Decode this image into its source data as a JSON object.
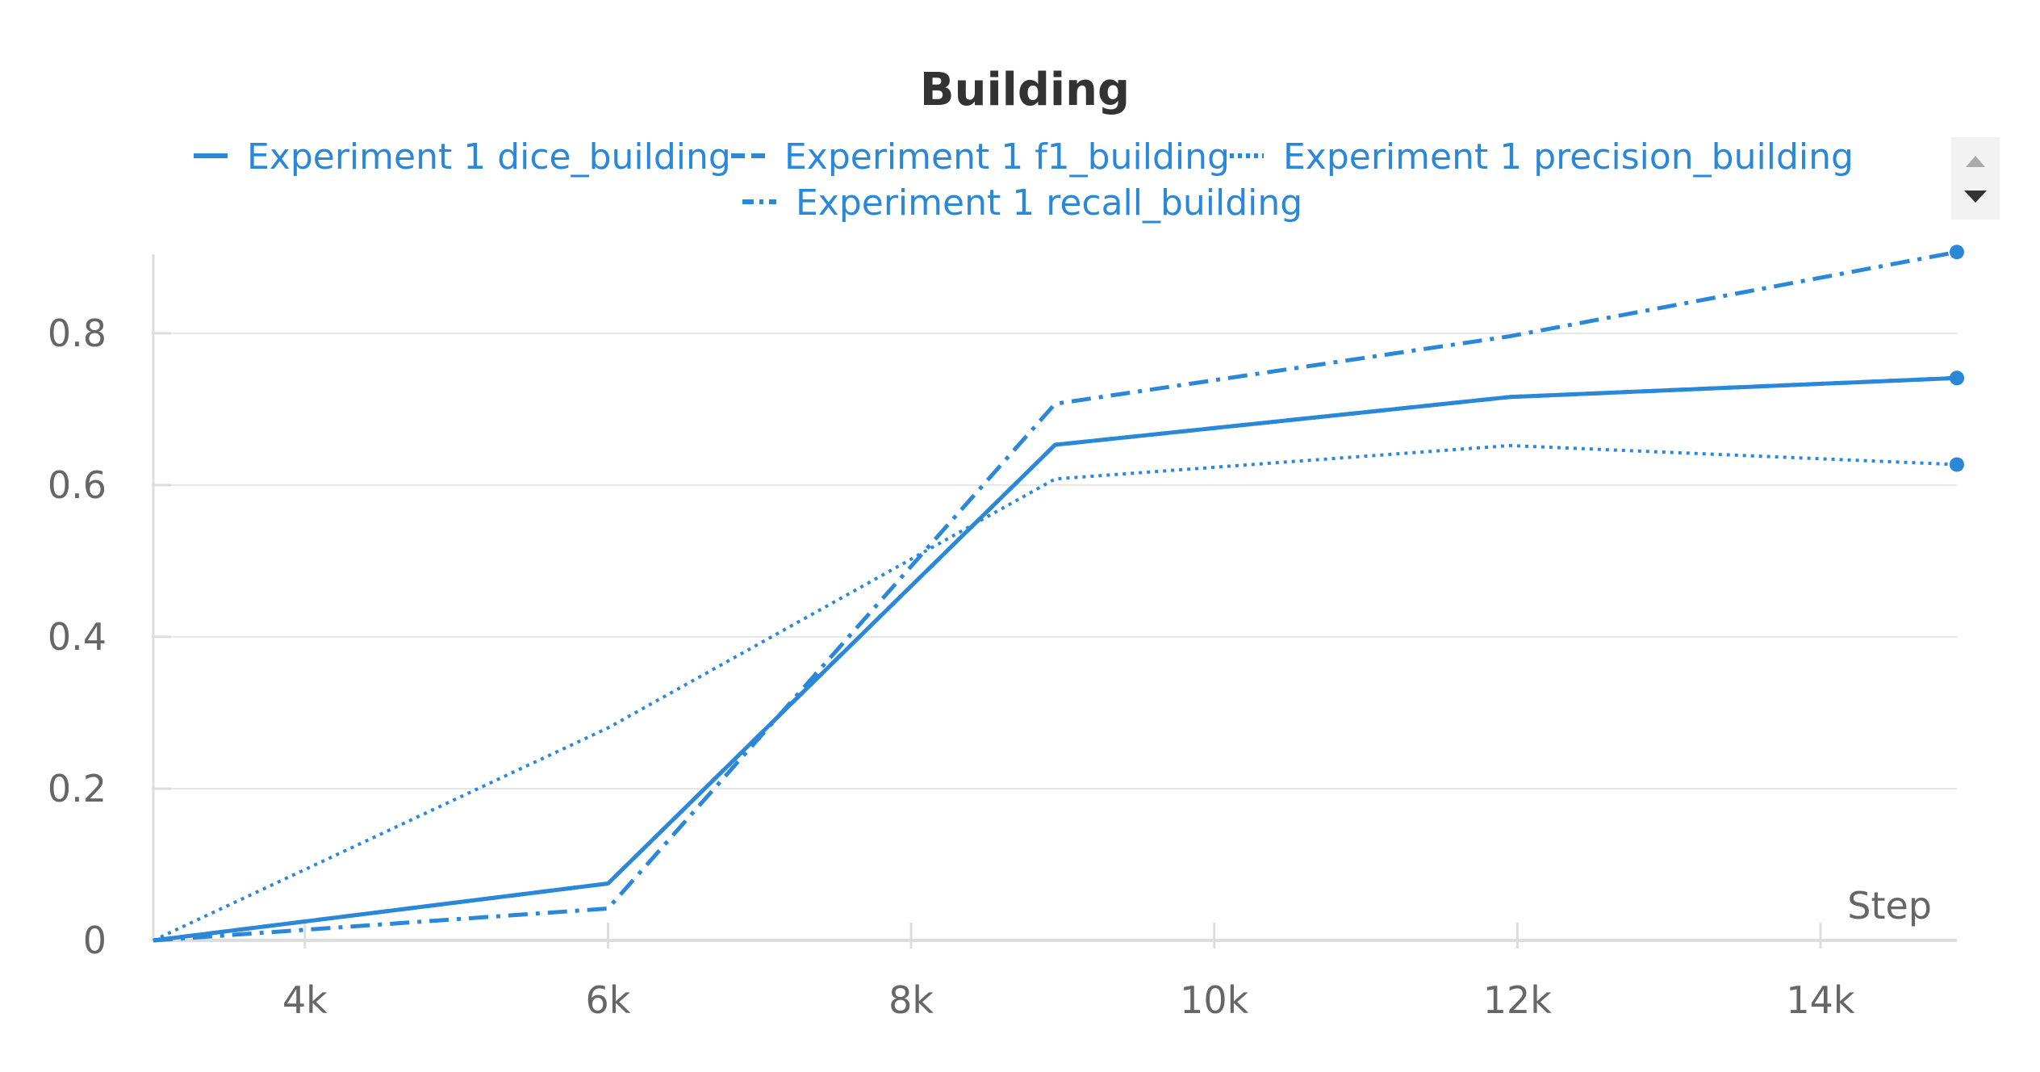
{
  "chart_data": {
    "type": "line",
    "title": "Building",
    "xlabel": "Step",
    "ylabel": "",
    "xlim": [
      3000,
      14900
    ],
    "ylim": [
      0,
      0.92
    ],
    "x_ticks": [
      {
        "value": 4000,
        "label": "4k"
      },
      {
        "value": 6000,
        "label": "6k"
      },
      {
        "value": 8000,
        "label": "8k"
      },
      {
        "value": 10000,
        "label": "10k"
      },
      {
        "value": 12000,
        "label": "12k"
      },
      {
        "value": 14000,
        "label": "14k"
      }
    ],
    "y_ticks": [
      {
        "value": 0,
        "label": "0"
      },
      {
        "value": 0.2,
        "label": "0.2"
      },
      {
        "value": 0.4,
        "label": "0.4"
      },
      {
        "value": 0.6,
        "label": "0.6"
      },
      {
        "value": 0.8,
        "label": "0.8"
      }
    ],
    "grid": true,
    "legend_position": "top",
    "series": [
      {
        "name": "Experiment 1 dice_building",
        "style": "solid",
        "color": "#2b88d8",
        "x": [
          3000,
          6000,
          8950,
          11950,
          14900
        ],
        "y": [
          0,
          0.075,
          0.653,
          0.716,
          0.741
        ]
      },
      {
        "name": "Experiment 1 f1_building",
        "style": "dashed",
        "color": "#2b88d8",
        "x": [
          3000,
          6000,
          8950,
          11950,
          14900
        ],
        "y": [
          0,
          0.075,
          0.653,
          0.716,
          0.741
        ]
      },
      {
        "name": "Experiment 1 precision_building",
        "style": "dotted",
        "color": "#2b88d8",
        "x": [
          3000,
          6000,
          8950,
          11950,
          14900
        ],
        "y": [
          0,
          0.28,
          0.608,
          0.652,
          0.627
        ]
      },
      {
        "name": "Experiment 1 recall_building",
        "style": "dashdot",
        "color": "#2b88d8",
        "x": [
          3000,
          6000,
          8950,
          11950,
          14900
        ],
        "y": [
          0,
          0.042,
          0.707,
          0.796,
          0.907
        ]
      }
    ]
  }
}
